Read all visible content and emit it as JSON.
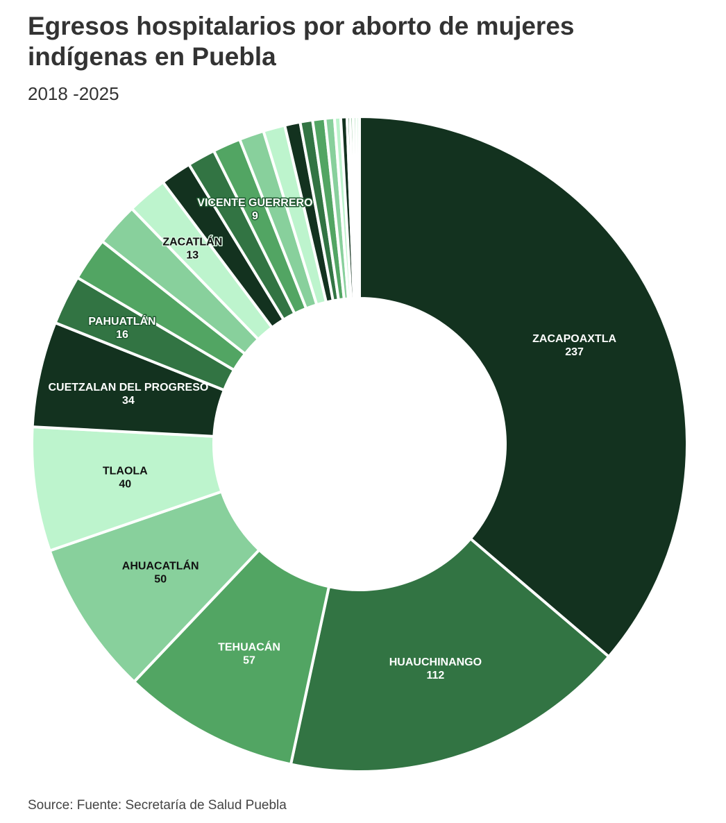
{
  "title": "Egresos hospitalarios por aborto de mujeres indígenas en Puebla",
  "subtitle": "2018 -2025",
  "source": "Source: Fuente: Secretaría de Salud Puebla",
  "chart_data": {
    "type": "pie",
    "donut": true,
    "categories": [
      "ZACAPOAXTLA",
      "HUAUCHINANGO",
      "TEHUACÁN",
      "AHUACATLÁN",
      "TLAOLA",
      "CUETZALAN DEL PROGRESO",
      "PAHUATLÁN",
      "",
      "",
      "ZACATLÁN",
      "",
      "",
      "VICENTE GUERRERO",
      "",
      "",
      "",
      "",
      "",
      "",
      "",
      "",
      "",
      "",
      "",
      ""
    ],
    "values": [
      237,
      112,
      57,
      50,
      40,
      34,
      16,
      14,
      14,
      13,
      10,
      9,
      9,
      8,
      7,
      5,
      4,
      4,
      3,
      2,
      2,
      1,
      1,
      1,
      1
    ],
    "colors": [
      "#13321f",
      "#327443",
      "#52a563",
      "#88d09c",
      "#bdf4cd",
      "#13321f",
      "#327443",
      "#52a563",
      "#88d09c",
      "#bdf4cd",
      "#13321f",
      "#327443",
      "#52a563",
      "#88d09c",
      "#bdf4cd",
      "#13321f",
      "#327443",
      "#52a563",
      "#88d09c",
      "#bdf4cd",
      "#13321f",
      "#327443",
      "#52a563",
      "#88d09c",
      "#bdf4cd"
    ],
    "legend": "none"
  }
}
